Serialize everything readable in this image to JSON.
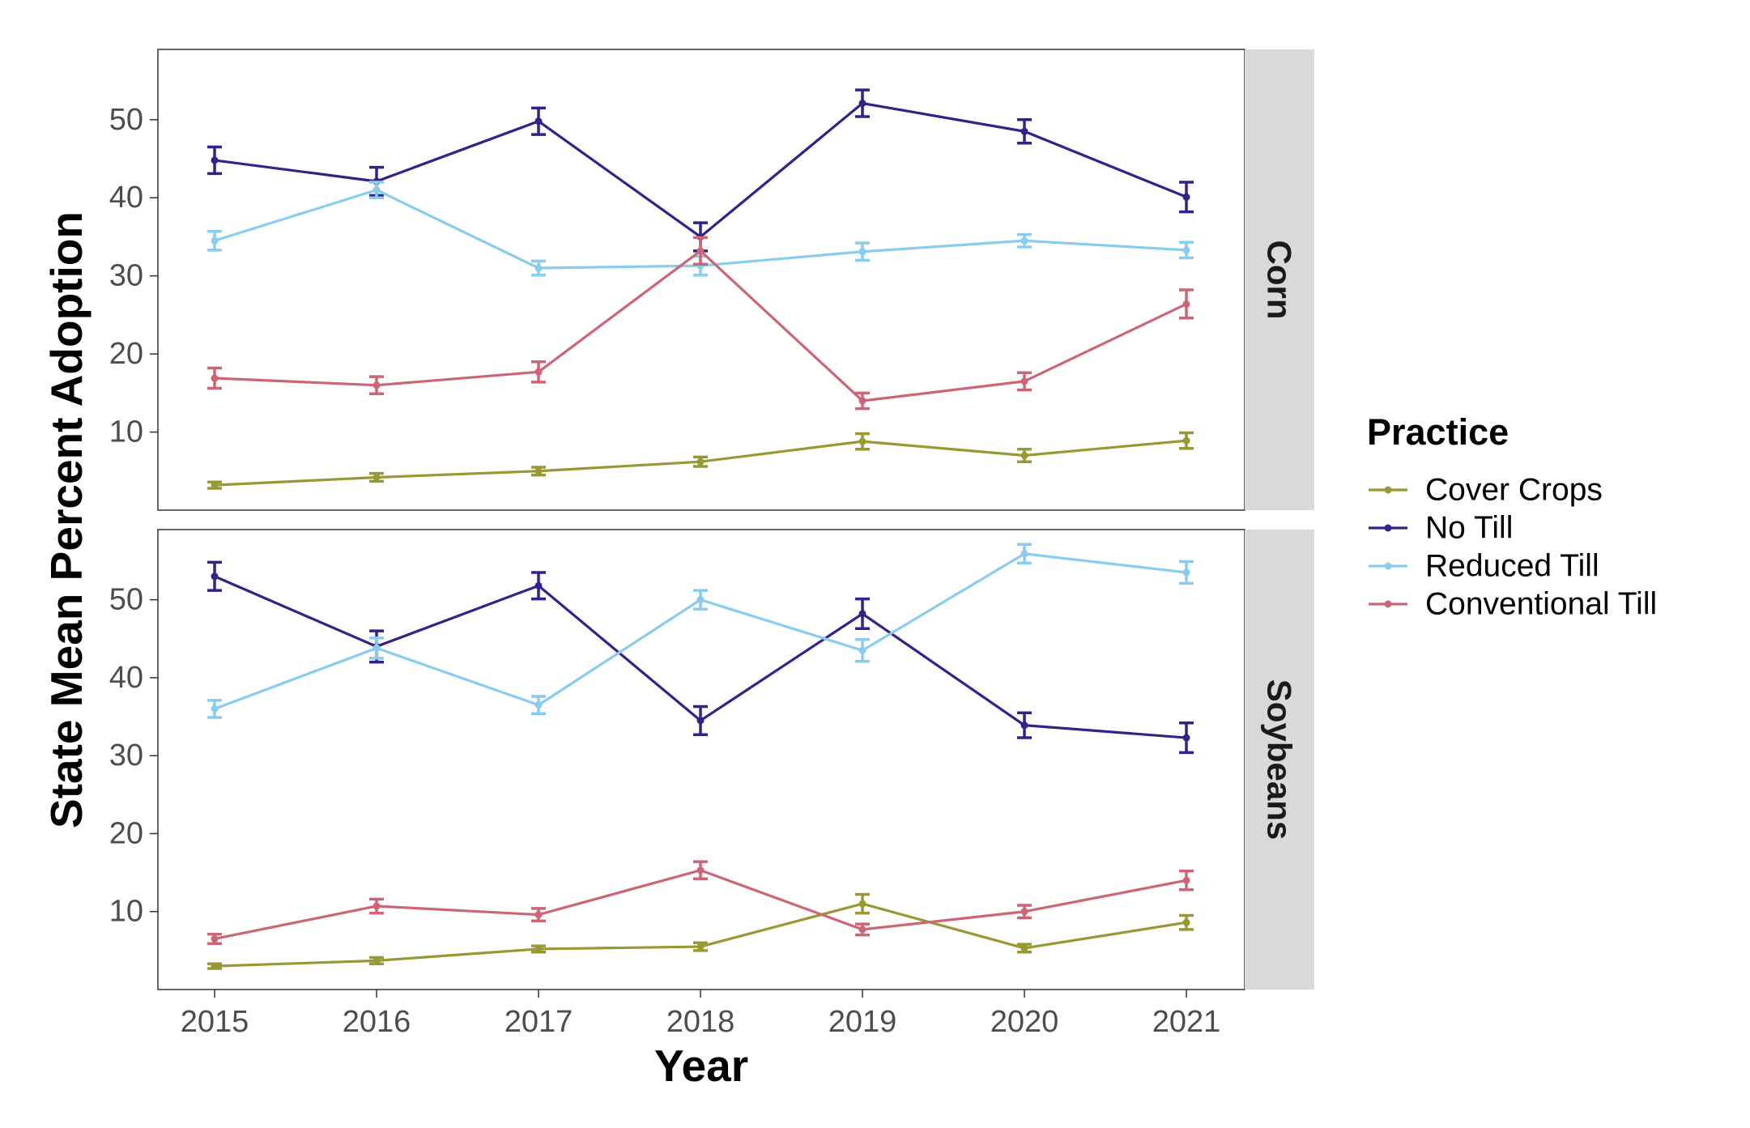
{
  "chart_data": {
    "type": "line",
    "xlabel": "Year",
    "ylabel": "State Mean Percent Adoption",
    "x": [
      2015,
      2016,
      2017,
      2018,
      2019,
      2020,
      2021
    ],
    "x_tick_labels": [
      "2015",
      "2016",
      "2017",
      "2018",
      "2019",
      "2020",
      "2021"
    ],
    "y_ticks": [
      10,
      20,
      30,
      40,
      50
    ],
    "y_tick_labels": [
      "10",
      "20",
      "30",
      "40",
      "50"
    ],
    "ylim": [
      0,
      59
    ],
    "grid": false,
    "error_bars": true,
    "legend": {
      "title": "Practice",
      "placement": "right",
      "entries": [
        "Cover Crops",
        "No Till",
        "Reduced Till",
        "Conventional Till"
      ]
    },
    "colors": {
      "Cover Crops": "#999933",
      "No Till": "#332288",
      "Reduced Till": "#88CCEE",
      "Conventional Till": "#CC6677"
    },
    "panels": [
      {
        "label": "Corn",
        "series": [
          {
            "name": "Cover Crops",
            "values": [
              3.2,
              4.2,
              5.0,
              6.2,
              8.8,
              7.0,
              8.9
            ],
            "errors": [
              0.4,
              0.5,
              0.5,
              0.6,
              1.0,
              0.8,
              1.0
            ]
          },
          {
            "name": "No Till",
            "values": [
              44.8,
              42.1,
              49.8,
              35.0,
              52.1,
              48.5,
              40.1
            ],
            "errors": [
              1.7,
              1.8,
              1.7,
              1.8,
              1.7,
              1.5,
              1.9
            ]
          },
          {
            "name": "Reduced Till",
            "values": [
              34.5,
              41.0,
              31.0,
              31.3,
              33.1,
              34.5,
              33.3
            ],
            "errors": [
              1.2,
              1.0,
              0.9,
              1.2,
              1.1,
              0.8,
              1.0
            ]
          },
          {
            "name": "Conventional Till",
            "values": [
              16.9,
              16.0,
              17.7,
              33.2,
              14.0,
              16.5,
              26.4
            ],
            "errors": [
              1.3,
              1.1,
              1.3,
              1.7,
              1.0,
              1.1,
              1.8
            ]
          }
        ]
      },
      {
        "label": "Soybeans",
        "series": [
          {
            "name": "Cover Crops",
            "values": [
              3.0,
              3.7,
              5.2,
              5.5,
              11.0,
              5.3,
              8.6
            ],
            "errors": [
              0.3,
              0.4,
              0.4,
              0.5,
              1.2,
              0.5,
              0.9
            ]
          },
          {
            "name": "No Till",
            "values": [
              53.0,
              44.0,
              51.8,
              34.5,
              48.2,
              33.9,
              32.3
            ],
            "errors": [
              1.8,
              2.0,
              1.7,
              1.8,
              1.9,
              1.6,
              1.9
            ]
          },
          {
            "name": "Reduced Till",
            "values": [
              36.0,
              43.8,
              36.5,
              50.0,
              43.5,
              55.9,
              53.5
            ],
            "errors": [
              1.1,
              1.3,
              1.1,
              1.2,
              1.4,
              1.2,
              1.4
            ]
          },
          {
            "name": "Conventional Till",
            "values": [
              6.5,
              10.7,
              9.6,
              15.3,
              7.7,
              10.0,
              14.0
            ],
            "errors": [
              0.6,
              0.9,
              0.8,
              1.1,
              0.7,
              0.8,
              1.2
            ]
          }
        ]
      }
    ]
  }
}
